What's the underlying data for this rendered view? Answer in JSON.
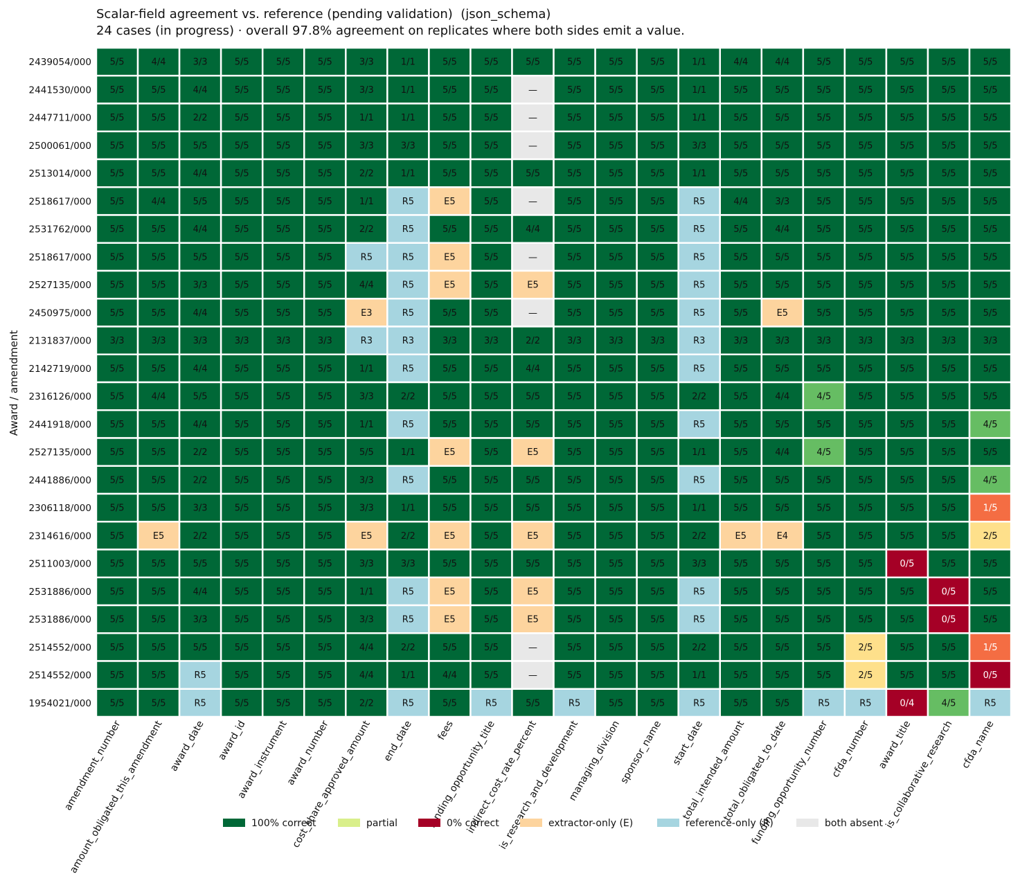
{
  "chart_data": {
    "type": "heatmap",
    "title": "Scalar-field agreement vs. reference (pending validation)  (json_schema)",
    "subtitle": "24 cases (in progress) · overall 97.8% agreement on replicates where both sides emit a value.",
    "ylabel": "Award / amendment",
    "columns": [
      "amendment_number",
      "amount_obligated_this_amendment",
      "award_date",
      "award_id",
      "award_instrument",
      "award_number",
      "cost_share_approved_amount",
      "end_date",
      "fees",
      "funding_opportunity_title",
      "indirect_cost_rate_percent",
      "is_research_and_development",
      "managing_division",
      "sponsor_name",
      "start_date",
      "total_intended_amount",
      "total_obligated_to_date",
      "funding_opportunity_number",
      "cfda_number",
      "award_title",
      "is_collaborative_research",
      "cfda_name"
    ],
    "rows": [
      "2439054/000",
      "2441530/000",
      "2447711/000",
      "2500061/000",
      "2513014/000",
      "2518617/000",
      "2531762/000",
      "2518617/000",
      "2527135/000",
      "2450975/000",
      "2131837/000",
      "2142719/000",
      "2316126/000",
      "2441918/000",
      "2527135/000",
      "2441886/000",
      "2306118/000",
      "2314616/000",
      "2511003/000",
      "2531886/000",
      "2531886/000",
      "2514552/000",
      "2514552/000",
      "1954021/000"
    ],
    "cells": [
      [
        "5/5",
        "4/4",
        "3/3",
        "5/5",
        "5/5",
        "5/5",
        "3/3",
        "1/1",
        "5/5",
        "5/5",
        "5/5",
        "5/5",
        "5/5",
        "5/5",
        "1/1",
        "4/4",
        "4/4",
        "5/5",
        "5/5",
        "5/5",
        "5/5",
        "5/5"
      ],
      [
        "5/5",
        "5/5",
        "4/4",
        "5/5",
        "5/5",
        "5/5",
        "3/3",
        "1/1",
        "5/5",
        "5/5",
        "—",
        "5/5",
        "5/5",
        "5/5",
        "1/1",
        "5/5",
        "5/5",
        "5/5",
        "5/5",
        "5/5",
        "5/5",
        "5/5"
      ],
      [
        "5/5",
        "5/5",
        "2/2",
        "5/5",
        "5/5",
        "5/5",
        "1/1",
        "1/1",
        "5/5",
        "5/5",
        "—",
        "5/5",
        "5/5",
        "5/5",
        "1/1",
        "5/5",
        "5/5",
        "5/5",
        "5/5",
        "5/5",
        "5/5",
        "5/5"
      ],
      [
        "5/5",
        "5/5",
        "5/5",
        "5/5",
        "5/5",
        "5/5",
        "3/3",
        "3/3",
        "5/5",
        "5/5",
        "—",
        "5/5",
        "5/5",
        "5/5",
        "3/3",
        "5/5",
        "5/5",
        "5/5",
        "5/5",
        "5/5",
        "5/5",
        "5/5"
      ],
      [
        "5/5",
        "5/5",
        "4/4",
        "5/5",
        "5/5",
        "5/5",
        "2/2",
        "1/1",
        "5/5",
        "5/5",
        "5/5",
        "5/5",
        "5/5",
        "5/5",
        "1/1",
        "5/5",
        "5/5",
        "5/5",
        "5/5",
        "5/5",
        "5/5",
        "5/5"
      ],
      [
        "5/5",
        "4/4",
        "5/5",
        "5/5",
        "5/5",
        "5/5",
        "1/1",
        "R5",
        "E5",
        "5/5",
        "—",
        "5/5",
        "5/5",
        "5/5",
        "R5",
        "4/4",
        "3/3",
        "5/5",
        "5/5",
        "5/5",
        "5/5",
        "5/5"
      ],
      [
        "5/5",
        "5/5",
        "4/4",
        "5/5",
        "5/5",
        "5/5",
        "2/2",
        "R5",
        "5/5",
        "5/5",
        "4/4",
        "5/5",
        "5/5",
        "5/5",
        "R5",
        "5/5",
        "4/4",
        "5/5",
        "5/5",
        "5/5",
        "5/5",
        "5/5"
      ],
      [
        "5/5",
        "5/5",
        "5/5",
        "5/5",
        "5/5",
        "5/5",
        "R5",
        "R5",
        "E5",
        "5/5",
        "—",
        "5/5",
        "5/5",
        "5/5",
        "R5",
        "5/5",
        "5/5",
        "5/5",
        "5/5",
        "5/5",
        "5/5",
        "5/5"
      ],
      [
        "5/5",
        "5/5",
        "3/3",
        "5/5",
        "5/5",
        "5/5",
        "4/4",
        "R5",
        "E5",
        "5/5",
        "E5",
        "5/5",
        "5/5",
        "5/5",
        "R5",
        "5/5",
        "5/5",
        "5/5",
        "5/5",
        "5/5",
        "5/5",
        "5/5"
      ],
      [
        "5/5",
        "5/5",
        "4/4",
        "5/5",
        "5/5",
        "5/5",
        "E3",
        "R5",
        "5/5",
        "5/5",
        "—",
        "5/5",
        "5/5",
        "5/5",
        "R5",
        "5/5",
        "E5",
        "5/5",
        "5/5",
        "5/5",
        "5/5",
        "5/5"
      ],
      [
        "3/3",
        "3/3",
        "3/3",
        "3/3",
        "3/3",
        "3/3",
        "R3",
        "R3",
        "3/3",
        "3/3",
        "2/2",
        "3/3",
        "3/3",
        "3/3",
        "R3",
        "3/3",
        "3/3",
        "3/3",
        "3/3",
        "3/3",
        "3/3",
        "3/3"
      ],
      [
        "5/5",
        "5/5",
        "4/4",
        "5/5",
        "5/5",
        "5/5",
        "1/1",
        "R5",
        "5/5",
        "5/5",
        "4/4",
        "5/5",
        "5/5",
        "5/5",
        "R5",
        "5/5",
        "5/5",
        "5/5",
        "5/5",
        "5/5",
        "5/5",
        "5/5"
      ],
      [
        "5/5",
        "4/4",
        "5/5",
        "5/5",
        "5/5",
        "5/5",
        "3/3",
        "2/2",
        "5/5",
        "5/5",
        "5/5",
        "5/5",
        "5/5",
        "5/5",
        "2/2",
        "5/5",
        "4/4",
        "4/5",
        "5/5",
        "5/5",
        "5/5",
        "5/5"
      ],
      [
        "5/5",
        "5/5",
        "4/4",
        "5/5",
        "5/5",
        "5/5",
        "1/1",
        "R5",
        "5/5",
        "5/5",
        "5/5",
        "5/5",
        "5/5",
        "5/5",
        "R5",
        "5/5",
        "5/5",
        "5/5",
        "5/5",
        "5/5",
        "5/5",
        "4/5"
      ],
      [
        "5/5",
        "5/5",
        "2/2",
        "5/5",
        "5/5",
        "5/5",
        "5/5",
        "1/1",
        "E5",
        "5/5",
        "E5",
        "5/5",
        "5/5",
        "5/5",
        "1/1",
        "5/5",
        "4/4",
        "4/5",
        "5/5",
        "5/5",
        "5/5",
        "5/5"
      ],
      [
        "5/5",
        "5/5",
        "2/2",
        "5/5",
        "5/5",
        "5/5",
        "3/3",
        "R5",
        "5/5",
        "5/5",
        "5/5",
        "5/5",
        "5/5",
        "5/5",
        "R5",
        "5/5",
        "5/5",
        "5/5",
        "5/5",
        "5/5",
        "5/5",
        "4/5"
      ],
      [
        "5/5",
        "5/5",
        "3/3",
        "5/5",
        "5/5",
        "5/5",
        "3/3",
        "1/1",
        "5/5",
        "5/5",
        "5/5",
        "5/5",
        "5/5",
        "5/5",
        "1/1",
        "5/5",
        "5/5",
        "5/5",
        "5/5",
        "5/5",
        "5/5",
        "1/5"
      ],
      [
        "5/5",
        "E5",
        "2/2",
        "5/5",
        "5/5",
        "5/5",
        "E5",
        "2/2",
        "E5",
        "5/5",
        "E5",
        "5/5",
        "5/5",
        "5/5",
        "2/2",
        "E5",
        "E4",
        "5/5",
        "5/5",
        "5/5",
        "5/5",
        "2/5"
      ],
      [
        "5/5",
        "5/5",
        "5/5",
        "5/5",
        "5/5",
        "5/5",
        "3/3",
        "3/3",
        "5/5",
        "5/5",
        "5/5",
        "5/5",
        "5/5",
        "5/5",
        "3/3",
        "5/5",
        "5/5",
        "5/5",
        "5/5",
        "0/5",
        "5/5",
        "5/5"
      ],
      [
        "5/5",
        "5/5",
        "4/4",
        "5/5",
        "5/5",
        "5/5",
        "1/1",
        "R5",
        "E5",
        "5/5",
        "E5",
        "5/5",
        "5/5",
        "5/5",
        "R5",
        "5/5",
        "5/5",
        "5/5",
        "5/5",
        "5/5",
        "0/5",
        "5/5"
      ],
      [
        "5/5",
        "5/5",
        "3/3",
        "5/5",
        "5/5",
        "5/5",
        "3/3",
        "R5",
        "E5",
        "5/5",
        "E5",
        "5/5",
        "5/5",
        "5/5",
        "R5",
        "5/5",
        "5/5",
        "5/5",
        "5/5",
        "5/5",
        "0/5",
        "5/5"
      ],
      [
        "5/5",
        "5/5",
        "5/5",
        "5/5",
        "5/5",
        "5/5",
        "4/4",
        "2/2",
        "5/5",
        "5/5",
        "—",
        "5/5",
        "5/5",
        "5/5",
        "2/2",
        "5/5",
        "5/5",
        "5/5",
        "2/5",
        "5/5",
        "5/5",
        "1/5"
      ],
      [
        "5/5",
        "5/5",
        "R5",
        "5/5",
        "5/5",
        "5/5",
        "4/4",
        "1/1",
        "4/4",
        "5/5",
        "—",
        "5/5",
        "5/5",
        "5/5",
        "1/1",
        "5/5",
        "5/5",
        "5/5",
        "2/5",
        "5/5",
        "5/5",
        "0/5"
      ],
      [
        "5/5",
        "5/5",
        "R5",
        "5/5",
        "5/5",
        "5/5",
        "2/2",
        "R5",
        "5/5",
        "R5",
        "5/5",
        "R5",
        "5/5",
        "5/5",
        "R5",
        "5/5",
        "5/5",
        "R5",
        "R5",
        "0/4",
        "4/5",
        "R5"
      ]
    ],
    "legend": [
      {
        "label": "100% correct",
        "color": "#006837"
      },
      {
        "label": "partial",
        "color": "#d9ef8b"
      },
      {
        "label": "0% correct",
        "color": "#a50026"
      },
      {
        "label": "extractor-only (E)",
        "color": "#fdd49e"
      },
      {
        "label": "reference-only (R)",
        "color": "#a6d5e0"
      },
      {
        "label": "both absent",
        "color": "#e8e8e8"
      }
    ],
    "legend_position": "bottom-center",
    "colors": {
      "full": "#006837",
      "zero": "#a50026",
      "extractor_only": "#fdd49e",
      "reference_only": "#a6d5e0",
      "both_absent": "#e8e8e8",
      "frac_0_8": "#66bd63",
      "frac_0_4": "#fee08b",
      "frac_0_2": "#f46d43"
    }
  }
}
